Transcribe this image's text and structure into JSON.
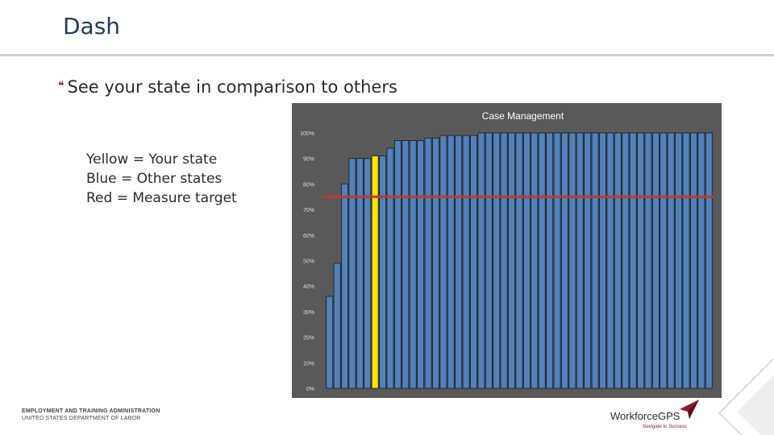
{
  "slide": {
    "title": "Dash",
    "bullet": "See your state in comparison to others",
    "legend": [
      "Yellow = Your state",
      "Blue = Other states",
      "Red = Measure target"
    ]
  },
  "footer": {
    "org_line1": "EMPLOYMENT AND TRAINING ADMINISTRATION",
    "org_line2": "UNITED STATES DEPARTMENT OF LABOR",
    "logo_text": "WorkforceGPS",
    "logo_tagline": "Navigate to Success"
  },
  "colors": {
    "accent": "#8b1d2b",
    "bar": "#4f81bd",
    "highlight": "#ffe600",
    "target": "#c0392b",
    "chart_bg": "#595959"
  },
  "chart_data": {
    "type": "bar",
    "title": "Case Management",
    "ylim": [
      0,
      100
    ],
    "yticks": [
      "0%",
      "10%",
      "20%",
      "30%",
      "40%",
      "50%",
      "60%",
      "70%",
      "80%",
      "90%",
      "100%"
    ],
    "target": 75,
    "highlight_index": 6,
    "values": [
      36,
      49,
      80,
      90,
      90,
      90,
      91,
      91,
      94,
      97,
      97,
      97,
      97,
      98,
      98,
      99,
      99,
      99,
      99,
      99,
      100,
      100,
      100,
      100,
      100,
      100,
      100,
      100,
      100,
      100,
      100,
      100,
      100,
      100,
      100,
      100,
      100,
      100,
      100,
      100,
      100,
      100,
      100,
      100,
      100,
      100,
      100,
      100,
      100,
      100,
      100
    ]
  }
}
